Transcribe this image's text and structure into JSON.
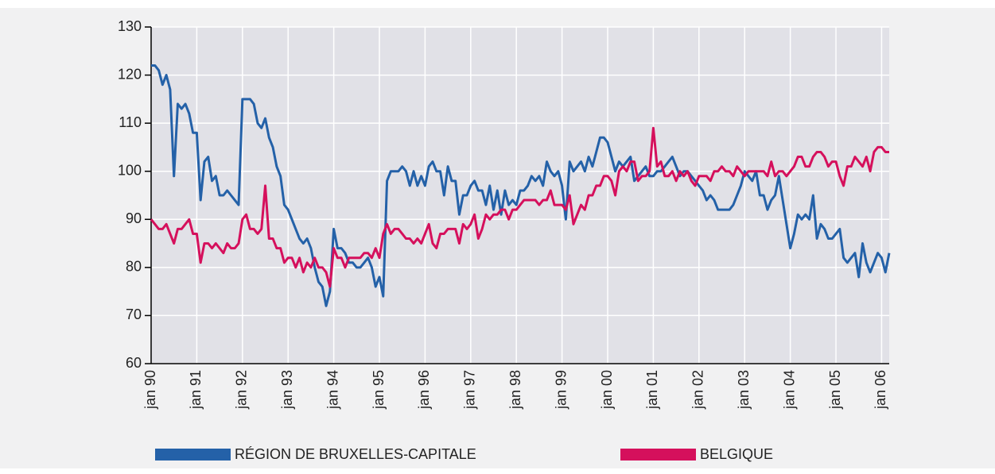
{
  "chart_data": {
    "type": "line",
    "categories": [
      "jan 90",
      null,
      null,
      null,
      null,
      null,
      null,
      null,
      null,
      null,
      null,
      null,
      "jan 91",
      null,
      null,
      null,
      null,
      null,
      null,
      null,
      null,
      null,
      null,
      null,
      "jan 92",
      null,
      null,
      null,
      null,
      null,
      null,
      null,
      null,
      null,
      null,
      null,
      "jan 93",
      null,
      null,
      null,
      null,
      null,
      null,
      null,
      null,
      null,
      null,
      null,
      "jan 94",
      null,
      null,
      null,
      null,
      null,
      null,
      null,
      null,
      null,
      null,
      null,
      "jan 95",
      null,
      null,
      null,
      null,
      null,
      null,
      null,
      null,
      null,
      null,
      null,
      "jan 96",
      null,
      null,
      null,
      null,
      null,
      null,
      null,
      null,
      null,
      null,
      null,
      "jan 97",
      null,
      null,
      null,
      null,
      null,
      null,
      null,
      null,
      null,
      null,
      null,
      "jan 98",
      null,
      null,
      null,
      null,
      null,
      null,
      null,
      null,
      null,
      null,
      null,
      "jan 99",
      null,
      null,
      null,
      null,
      null,
      null,
      null,
      null,
      null,
      null,
      null,
      "jan 00",
      null,
      null,
      null,
      null,
      null,
      null,
      null,
      null,
      null,
      null,
      null,
      "jan 01",
      null,
      null,
      null,
      null,
      null,
      null,
      null,
      null,
      null,
      null,
      null,
      "jan 02",
      null,
      null,
      null,
      null,
      null,
      null,
      null,
      null,
      null,
      null,
      null,
      "jan 03",
      null,
      null,
      null,
      null,
      null,
      null,
      null,
      null,
      null,
      null,
      null,
      "jan 04",
      null,
      null,
      null,
      null,
      null,
      null,
      null,
      null,
      null,
      null,
      null,
      "jan 05",
      null,
      null,
      null,
      null,
      null,
      null,
      null,
      null,
      null,
      null,
      null,
      "jan 06",
      null,
      null
    ],
    "series": [
      {
        "name": "RÉGION DE BRUXELLES-CAPITALE",
        "color": "#2461a8",
        "values": [
          122,
          122,
          121,
          118,
          120,
          117,
          99,
          114,
          113,
          114,
          112,
          108,
          108,
          94,
          102,
          103,
          98,
          99,
          95,
          95,
          96,
          95,
          94,
          93,
          115,
          115,
          115,
          114,
          110,
          109,
          111,
          107,
          105,
          101,
          99,
          93,
          92,
          90,
          88,
          86,
          85,
          86,
          84,
          80,
          77,
          76,
          72,
          75,
          88,
          84,
          84,
          83,
          81,
          81,
          80,
          80,
          81,
          82,
          80,
          76,
          78,
          74,
          98,
          100,
          100,
          100,
          101,
          100,
          97,
          100,
          97,
          99,
          97,
          101,
          102,
          100,
          100,
          95,
          101,
          98,
          98,
          91,
          95,
          95,
          97,
          98,
          96,
          96,
          93,
          97,
          92,
          96,
          91,
          96,
          93,
          94,
          93,
          96,
          96,
          97,
          99,
          98,
          99,
          97,
          102,
          100,
          99,
          100,
          97,
          90,
          102,
          100,
          101,
          102,
          100,
          103,
          101,
          104,
          107,
          107,
          106,
          103,
          100,
          102,
          101,
          102,
          103,
          98,
          99,
          100,
          101,
          99,
          99,
          100,
          100,
          101,
          102,
          103,
          101,
          99,
          100,
          100,
          99,
          98,
          97,
          96,
          94,
          95,
          94,
          92,
          92,
          92,
          92,
          93,
          95,
          97,
          100,
          99,
          98,
          100,
          95,
          95,
          92,
          94,
          95,
          99,
          94,
          89,
          84,
          87,
          91,
          90,
          91,
          90,
          95,
          86,
          89,
          88,
          86,
          86,
          87,
          88,
          82,
          81,
          82,
          83,
          78,
          85,
          81,
          79,
          81,
          83,
          82,
          79,
          83
        ]
      },
      {
        "name": "BELGIQUE",
        "color": "#d5105c",
        "values": [
          90,
          89,
          88,
          88,
          89,
          87,
          85,
          88,
          88,
          89,
          90,
          87,
          87,
          81,
          85,
          85,
          84,
          85,
          84,
          83,
          85,
          84,
          84,
          85,
          90,
          91,
          88,
          88,
          87,
          88,
          97,
          86,
          86,
          84,
          84,
          81,
          82,
          82,
          80,
          82,
          79,
          81,
          80,
          82,
          80,
          80,
          79,
          76,
          84,
          82,
          82,
          80,
          82,
          82,
          82,
          82,
          83,
          83,
          82,
          84,
          82,
          87,
          89,
          87,
          88,
          88,
          87,
          86,
          86,
          85,
          86,
          85,
          87,
          89,
          85,
          84,
          87,
          87,
          88,
          88,
          88,
          85,
          89,
          88,
          89,
          91,
          86,
          88,
          91,
          90,
          91,
          91,
          92,
          92,
          90,
          92,
          92,
          93,
          94,
          94,
          94,
          94,
          93,
          94,
          94,
          96,
          93,
          93,
          93,
          92,
          95,
          89,
          91,
          93,
          92,
          95,
          95,
          97,
          97,
          99,
          99,
          98,
          95,
          100,
          101,
          100,
          102,
          102,
          98,
          99,
          99,
          100,
          109,
          101,
          102,
          99,
          99,
          100,
          98,
          100,
          99,
          100,
          98,
          97,
          99,
          99,
          99,
          98,
          100,
          100,
          101,
          100,
          100,
          99,
          101,
          100,
          99,
          100,
          100,
          100,
          100,
          100,
          99,
          102,
          99,
          100,
          100,
          99,
          100,
          101,
          103,
          103,
          101,
          101,
          103,
          104,
          104,
          103,
          101,
          102,
          102,
          99,
          97,
          101,
          101,
          103,
          102,
          101,
          103,
          100,
          104,
          105,
          105,
          104,
          104
        ]
      }
    ],
    "ylim": [
      60,
      130
    ],
    "yticks": [
      60,
      70,
      80,
      90,
      100,
      110,
      120,
      130
    ],
    "grid": true
  }
}
